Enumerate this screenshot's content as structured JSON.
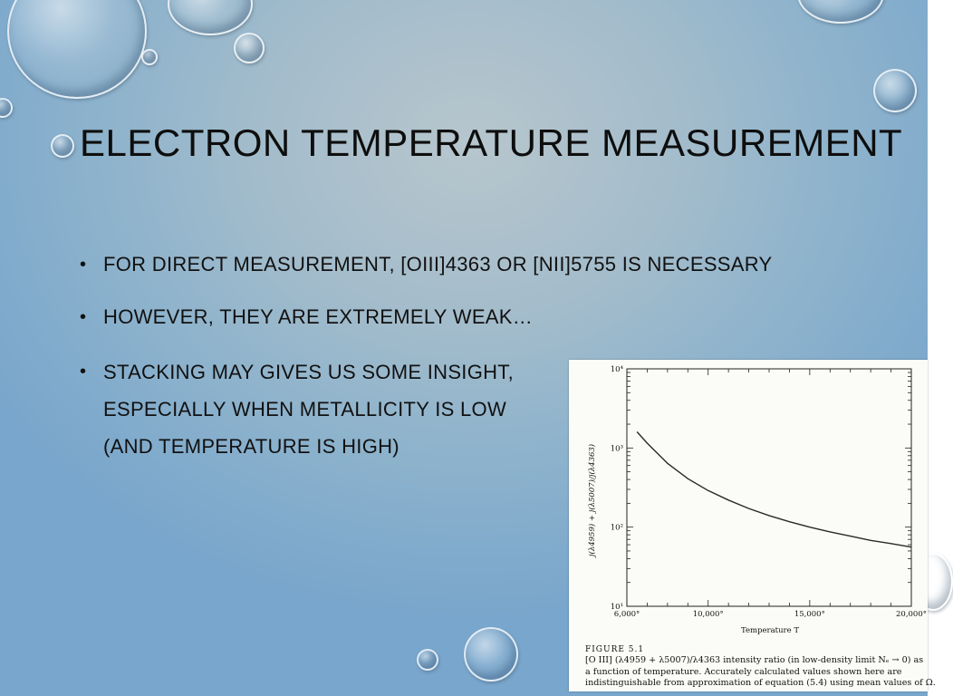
{
  "slide": {
    "title": "ELECTRON TEMPERATURE MEASUREMENT",
    "bullets": [
      {
        "lines": [
          "FOR DIRECT MEASUREMENT, [OIII]4363 OR [NII]5755 IS NECESSARY"
        ]
      },
      {
        "lines": [
          "HOWEVER, THEY ARE EXTREMELY WEAK…"
        ]
      },
      {
        "lines": [
          "STACKING MAY GIVES US SOME INSIGHT,",
          "ESPECIALLY WHEN METALLICITY IS LOW",
          "(AND TEMPERATURE IS HIGH)"
        ]
      }
    ],
    "bullet_glyph": "•"
  },
  "figure": {
    "caption_label": "FIGURE 5.1",
    "caption_lines": [
      "[O III] (λ4959 + λ5007)/λ4363 intensity ratio (in low-density limit Nₑ → 0) as",
      "a function of temperature. Accurately calculated values shown here are",
      "indistinguishable from approximation of equation (5.4) using mean values of Ω."
    ]
  },
  "chart_data": {
    "type": "line",
    "title": "",
    "xlabel": "Temperature T",
    "ylabel": "j(λ4959) + j(λ5007)/j(λ4363)",
    "xlim": [
      6000,
      20000
    ],
    "ylim": [
      10,
      10000
    ],
    "yscale": "log",
    "x_tick_labels": [
      "6,000°",
      "10,000°",
      "15,000°",
      "20,000°"
    ],
    "x_ticks": [
      6000,
      10000,
      15000,
      20000
    ],
    "y_tick_labels": [
      "10¹",
      "10²",
      "10³",
      "10⁴"
    ],
    "y_ticks": [
      10,
      100,
      1000,
      10000
    ],
    "series": [
      {
        "name": "",
        "x": [
          6500,
          7000,
          8000,
          9000,
          10000,
          11000,
          12000,
          13000,
          14000,
          15000,
          16000,
          17000,
          18000,
          19000,
          20000
        ],
        "y": [
          1600,
          1150,
          640,
          410,
          290,
          220,
          172,
          140,
          117,
          100,
          87,
          77,
          68,
          62,
          56
        ]
      }
    ],
    "grid": false
  },
  "colors": {
    "curve": "#2a2a2a",
    "axis": "#222222"
  }
}
